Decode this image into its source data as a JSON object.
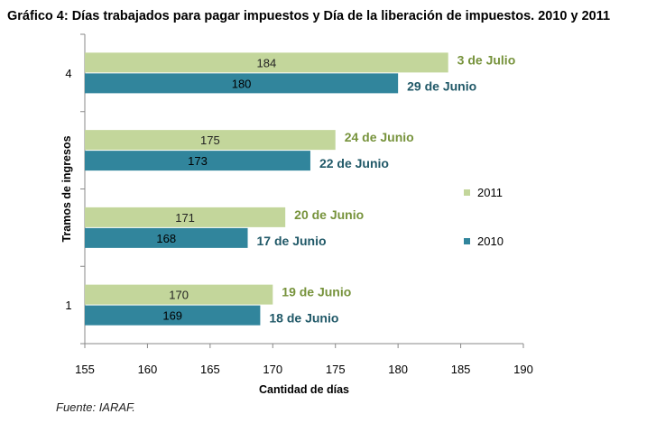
{
  "title": "Gráfico 4: Días trabajados para pagar impuestos y Día de la liberación de impuestos. 2010 y 2011",
  "source": "Fuente: IARAF.",
  "chart_data": {
    "type": "bar",
    "orientation": "horizontal",
    "xlabel": "Cantidad de días",
    "ylabel": "Tramos de ingresos",
    "xlim": [
      155,
      190
    ],
    "xticks": [
      155,
      160,
      165,
      170,
      175,
      180,
      185,
      190
    ],
    "categories": [
      "1",
      "",
      "",
      "4"
    ],
    "category_tick_labels": [
      "1",
      "4"
    ],
    "grid": false,
    "legend_position": "right",
    "colors": {
      "2011": "#c3d69b",
      "2010": "#31859c",
      "label_2011": "#77933c",
      "label_2010": "#215968"
    },
    "series": [
      {
        "name": "2011",
        "values": [
          170,
          171,
          175,
          184
        ],
        "data_labels": [
          "170",
          "171",
          "175",
          "184"
        ],
        "annotations": [
          "19 de Junio",
          "20 de Junio",
          "24 de Junio",
          "3 de Julio"
        ]
      },
      {
        "name": "2010",
        "values": [
          169,
          168,
          173,
          180
        ],
        "data_labels": [
          "169",
          "168",
          "173",
          "180"
        ],
        "annotations": [
          "18 de Junio",
          "17 de Junio",
          "22 de Junio",
          "29 de Junio"
        ]
      }
    ]
  }
}
